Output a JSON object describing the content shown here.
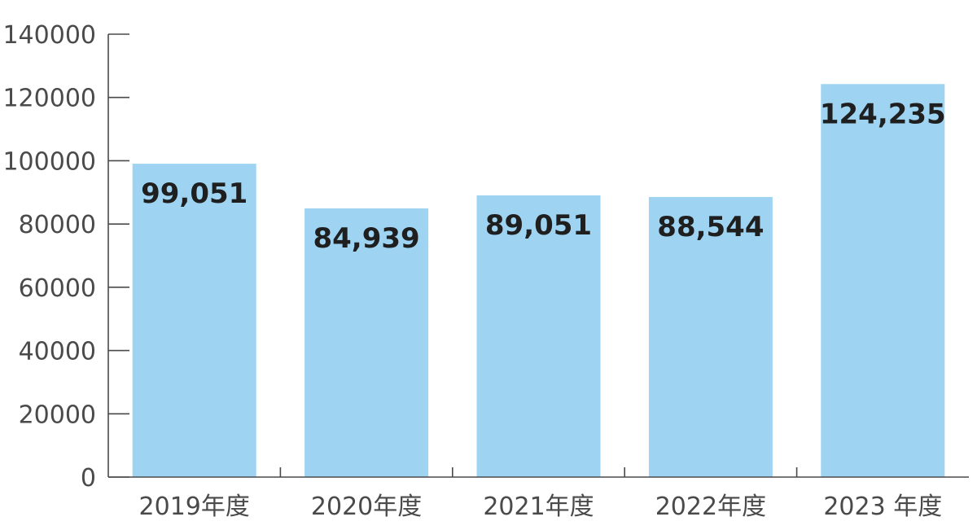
{
  "chart_data": {
    "type": "bar",
    "categories": [
      "2019年度",
      "2020年度",
      "2021年度",
      "2022年度",
      "2023 年度"
    ],
    "values": [
      99051,
      84939,
      89051,
      88544,
      124235
    ],
    "value_labels": [
      "99,051",
      "84,939",
      "89,051",
      "88,544",
      "124,235"
    ],
    "y_ticks": [
      "0",
      "20000",
      "40000",
      "60000",
      "80000",
      "100000",
      "120000",
      "140000"
    ],
    "ylim": [
      0,
      140000
    ],
    "title": "",
    "xlabel": "",
    "ylabel": "",
    "grid": false,
    "bar_color": "#9ed4f2"
  }
}
